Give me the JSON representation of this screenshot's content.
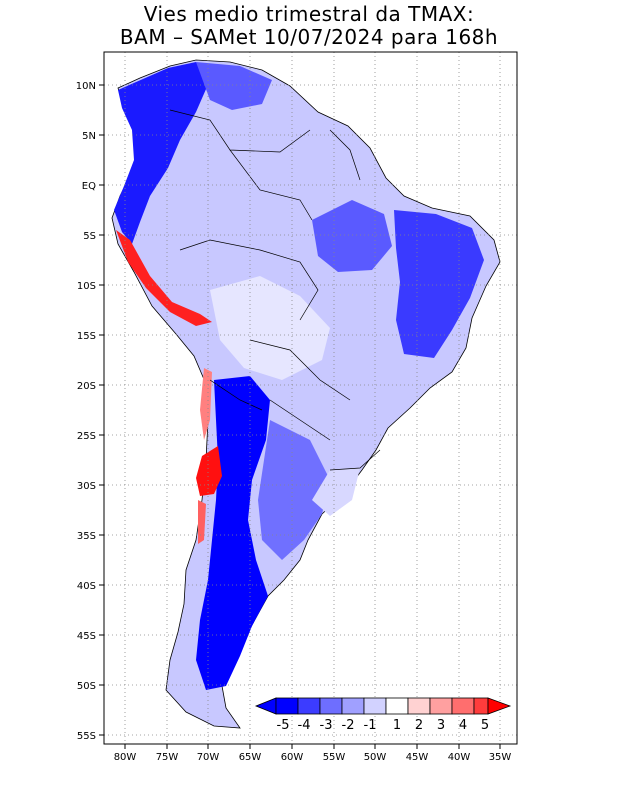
{
  "title": {
    "line1": "Vies medio trimestral da TMAX:",
    "line2": "BAM – SAMet 10/07/2024  para 168h"
  },
  "map": {
    "lon_ticks": [
      "80W",
      "75W",
      "70W",
      "65W",
      "60W",
      "55W",
      "50W",
      "45W",
      "40W",
      "35W"
    ],
    "lat_ticks": [
      "10N",
      "5N",
      "EQ",
      "5S",
      "10S",
      "15S",
      "20S",
      "25S",
      "30S",
      "35S",
      "40S",
      "45S",
      "50S",
      "55S"
    ],
    "grid": true,
    "region": "South America"
  },
  "colorbar": {
    "labels": [
      "-5",
      "-4",
      "-3",
      "-2",
      "-1",
      "1",
      "2",
      "3",
      "4",
      "5"
    ],
    "colors": [
      "#0000ff",
      "#3c3cff",
      "#6e6eff",
      "#a0a0ff",
      "#d2d2ff",
      "#ffffff",
      "#ffd2d2",
      "#ffa0a0",
      "#ff6e6e",
      "#ff3c3c",
      "#ff0000"
    ]
  }
}
